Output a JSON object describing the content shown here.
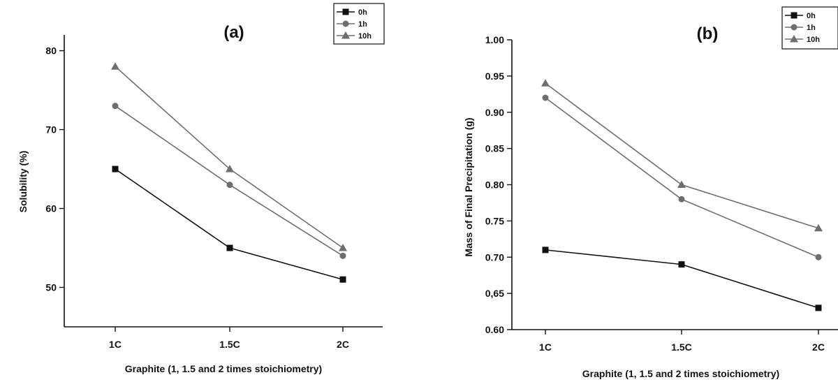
{
  "chart_data": [
    {
      "type": "line",
      "title": "(a)",
      "xlabel": "Graphite (1, 1.5 and 2 times stoichiometry)",
      "ylabel": "Solubility (%)",
      "categories": [
        "1C",
        "1.5C",
        "2C"
      ],
      "ylim": [
        45,
        82
      ],
      "yticks": [
        50,
        60,
        70,
        80
      ],
      "ytick_labels": [
        "50",
        "60",
        "70",
        "80"
      ],
      "grid": false,
      "legend_position": "top-right",
      "series": [
        {
          "name": "0h",
          "marker": "square",
          "color": "#111111",
          "values": [
            65,
            55,
            51
          ]
        },
        {
          "name": "1h",
          "marker": "circle",
          "color": "#6e6e6e",
          "values": [
            73,
            63,
            54
          ]
        },
        {
          "name": "10h",
          "marker": "triangle",
          "color": "#6e6e6e",
          "values": [
            78,
            65,
            55
          ]
        }
      ]
    },
    {
      "type": "line",
      "title": "(b)",
      "xlabel": "Graphite (1, 1.5 and 2 times stoichiometry)",
      "ylabel": "Mass of Final Precipitation (g)",
      "categories": [
        "1C",
        "1.5C",
        "2C"
      ],
      "ylim": [
        0.6,
        1.0
      ],
      "yticks": [
        0.6,
        0.65,
        0.7,
        0.75,
        0.8,
        0.85,
        0.9,
        0.95,
        1.0
      ],
      "ytick_labels": [
        "0.60",
        "0,65",
        "0.70",
        "0.75",
        "0.80",
        "0.85",
        "0.90",
        "0.95",
        "1.00"
      ],
      "grid": false,
      "legend_position": "top-right",
      "series": [
        {
          "name": "0h",
          "marker": "square",
          "color": "#111111",
          "values": [
            0.71,
            0.69,
            0.63
          ]
        },
        {
          "name": "1h",
          "marker": "circle",
          "color": "#6e6e6e",
          "values": [
            0.92,
            0.78,
            0.7
          ]
        },
        {
          "name": "10h",
          "marker": "triangle",
          "color": "#6e6e6e",
          "values": [
            0.94,
            0.8,
            0.74
          ]
        }
      ]
    }
  ]
}
